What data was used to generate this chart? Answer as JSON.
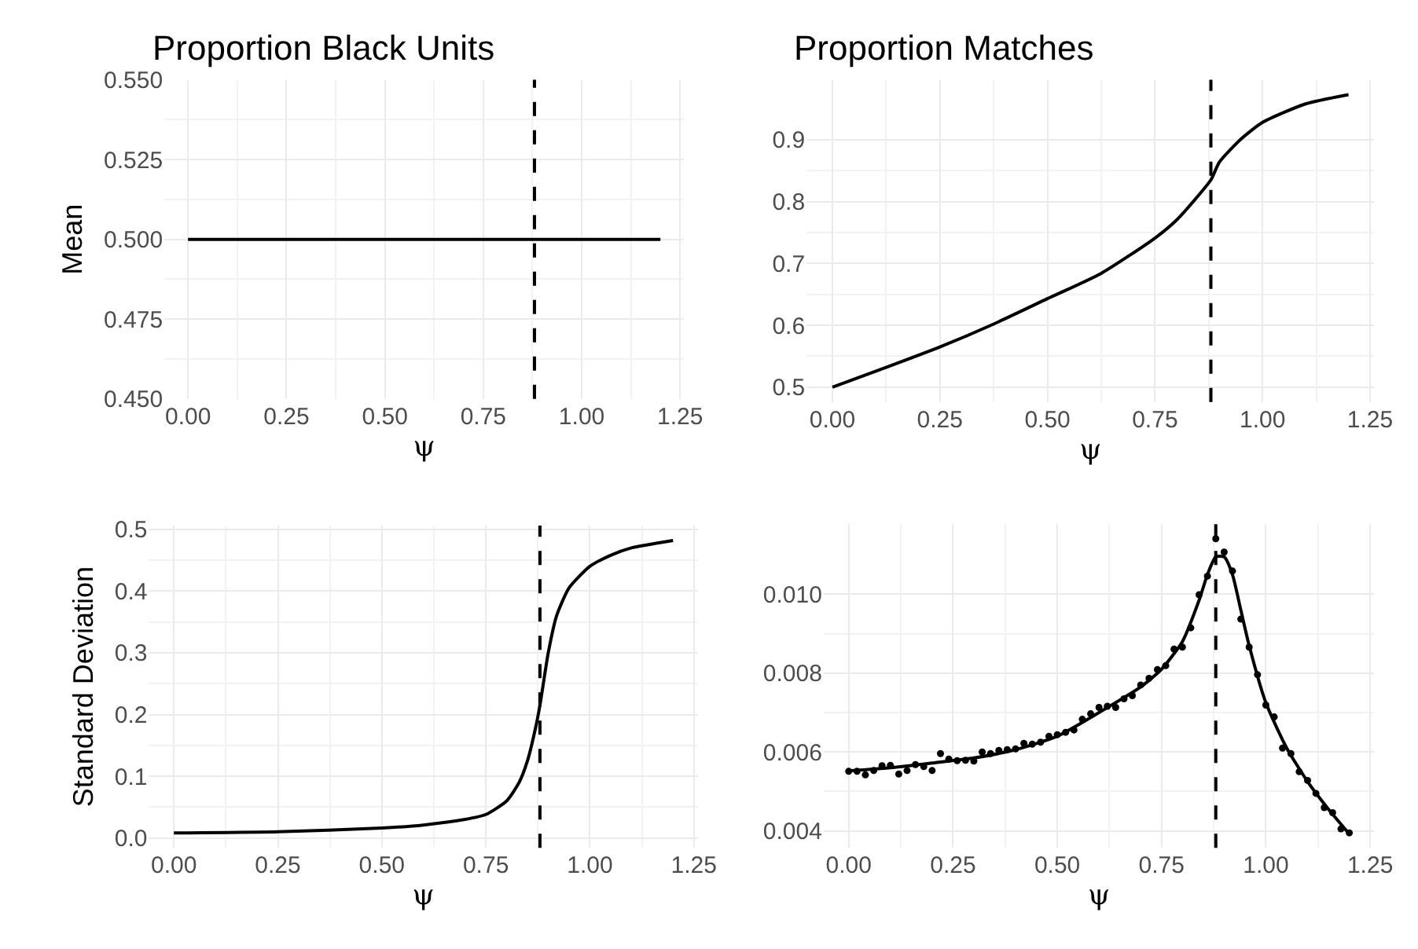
{
  "chart_data": [
    {
      "type": "line",
      "title": "Proportion Black Units",
      "xlabel": "ψ",
      "ylabel": "Mean",
      "xlim": [
        -0.06,
        1.26
      ],
      "ylim": [
        0.45,
        0.55
      ],
      "xticks": [
        {
          "value": 0,
          "label": "0.00"
        },
        {
          "value": 0.25,
          "label": "0.25"
        },
        {
          "value": 0.5,
          "label": "0.50"
        },
        {
          "value": 0.75,
          "label": "0.75"
        },
        {
          "value": 1,
          "label": "1.00"
        },
        {
          "value": 1.25,
          "label": "1.25"
        }
      ],
      "yticks": [
        {
          "value": 0.45,
          "label": "0.450"
        },
        {
          "value": 0.475,
          "label": "0.475"
        },
        {
          "value": 0.5,
          "label": "0.500"
        },
        {
          "value": 0.525,
          "label": "0.525"
        },
        {
          "value": 0.55,
          "label": "0.550"
        }
      ],
      "grid": true,
      "marker": "none",
      "line_style": "solid",
      "series": [
        {
          "color": "#000000",
          "x": [
            0,
            1.2
          ],
          "values": [
            0.5,
            0.5
          ]
        }
      ],
      "ref_lines": [
        {
          "axis": "x",
          "value": 0.88,
          "line_style": "dashed",
          "color": "#000000"
        }
      ]
    },
    {
      "type": "line",
      "title": "Proportion Matches",
      "xlabel": "ψ",
      "xlim": [
        -0.06,
        1.26
      ],
      "ylim": [
        0.476,
        0.997
      ],
      "xticks": [
        {
          "value": 0,
          "label": "0.00"
        },
        {
          "value": 0.25,
          "label": "0.25"
        },
        {
          "value": 0.5,
          "label": "0.50"
        },
        {
          "value": 0.75,
          "label": "0.75"
        },
        {
          "value": 1,
          "label": "1.00"
        },
        {
          "value": 1.25,
          "label": "1.25"
        }
      ],
      "yticks": [
        0.5,
        0.6,
        0.7,
        0.8,
        0.9
      ],
      "grid": true,
      "marker": "none",
      "line_style": "solid",
      "series": [
        {
          "color": "#000000",
          "x": [
            0,
            0.125,
            0.25,
            0.375,
            0.5,
            0.625,
            0.75,
            0.8,
            0.85,
            0.88,
            0.9,
            0.95,
            1.0,
            1.1,
            1.2
          ],
          "values": [
            0.5,
            0.532,
            0.565,
            0.602,
            0.643,
            0.684,
            0.741,
            0.77,
            0.809,
            0.835,
            0.864,
            0.901,
            0.928,
            0.958,
            0.973
          ]
        }
      ],
      "ref_lines": [
        {
          "axis": "x",
          "value": 0.88,
          "line_style": "dashed",
          "color": "#000000"
        }
      ]
    },
    {
      "type": "line",
      "xlabel": "ψ",
      "ylabel": "Standard Deviation",
      "xlim": [
        -0.06,
        1.26
      ],
      "ylim": [
        -0.016,
        0.506
      ],
      "xticks": [
        {
          "value": 0,
          "label": "0.00"
        },
        {
          "value": 0.25,
          "label": "0.25"
        },
        {
          "value": 0.5,
          "label": "0.50"
        },
        {
          "value": 0.75,
          "label": "0.75"
        },
        {
          "value": 1,
          "label": "1.00"
        },
        {
          "value": 1.25,
          "label": "1.25"
        }
      ],
      "yticks": [
        {
          "value": 0,
          "label": "0.0"
        },
        0.1,
        0.2,
        0.3,
        0.4,
        0.5
      ],
      "grid": true,
      "marker": "none",
      "line_style": "solid",
      "series": [
        {
          "color": "#000000",
          "x": [
            0,
            0.25,
            0.5,
            0.6,
            0.7,
            0.75,
            0.8,
            0.83,
            0.85,
            0.87,
            0.88,
            0.9,
            0.92,
            0.95,
            1.0,
            1.05,
            1.1,
            1.2
          ],
          "values": [
            0.008,
            0.01,
            0.016,
            0.021,
            0.03,
            0.038,
            0.06,
            0.09,
            0.125,
            0.18,
            0.215,
            0.3,
            0.36,
            0.405,
            0.44,
            0.458,
            0.47,
            0.482
          ]
        }
      ],
      "ref_lines": [
        {
          "axis": "x",
          "value": 0.88,
          "line_style": "dashed",
          "color": "#000000"
        }
      ]
    },
    {
      "type": "line",
      "xlabel": "ψ",
      "xlim": [
        -0.06,
        1.26
      ],
      "ylim": [
        0.00357,
        0.01178
      ],
      "xticks": [
        {
          "value": 0,
          "label": "0.00"
        },
        {
          "value": 0.25,
          "label": "0.25"
        },
        {
          "value": 0.5,
          "label": "0.50"
        },
        {
          "value": 0.75,
          "label": "0.75"
        },
        {
          "value": 1,
          "label": "1.00"
        },
        {
          "value": 1.25,
          "label": "1.25"
        }
      ],
      "yticks": [
        0.004,
        0.006,
        0.008,
        {
          "value": 0.01,
          "label": "0.010"
        }
      ],
      "grid": true,
      "line_style": "solid",
      "series": [
        {
          "type": "scatter",
          "marker": "circle",
          "color": "#000000",
          "x": [
            0,
            0.02,
            0.04,
            0.06,
            0.08,
            0.1,
            0.12,
            0.14,
            0.16,
            0.18,
            0.2,
            0.22,
            0.24,
            0.26,
            0.28,
            0.3,
            0.32,
            0.34,
            0.36,
            0.38,
            0.4,
            0.42,
            0.44,
            0.46,
            0.48,
            0.5,
            0.52,
            0.54,
            0.56,
            0.58,
            0.6,
            0.62,
            0.64,
            0.66,
            0.68,
            0.7,
            0.72,
            0.74,
            0.76,
            0.78,
            0.8,
            0.82,
            0.84,
            0.86,
            0.88,
            0.9,
            0.92,
            0.94,
            0.96,
            0.98,
            1.0,
            1.02,
            1.04,
            1.06,
            1.08,
            1.1,
            1.12,
            1.14,
            1.16,
            1.18,
            1.2
          ],
          "values": [
            0.00551,
            0.00551,
            0.00542,
            0.00553,
            0.00565,
            0.00566,
            0.00544,
            0.00553,
            0.00568,
            0.00563,
            0.00553,
            0.00596,
            0.00582,
            0.00578,
            0.00579,
            0.00577,
            0.006,
            0.00596,
            0.00604,
            0.00606,
            0.00608,
            0.00622,
            0.0062,
            0.00625,
            0.0064,
            0.00644,
            0.0065,
            0.00656,
            0.00683,
            0.00697,
            0.00713,
            0.00716,
            0.00713,
            0.00735,
            0.00743,
            0.0077,
            0.00787,
            0.00809,
            0.00819,
            0.00861,
            0.00866,
            0.00915,
            0.00999,
            0.01046,
            0.01141,
            0.01107,
            0.01059,
            0.00937,
            0.00866,
            0.00796,
            0.00719,
            0.00689,
            0.0061,
            0.00596,
            0.0055,
            0.00528,
            0.00495,
            0.00459,
            0.00446,
            0.00405,
            0.00395
          ]
        },
        {
          "type": "line",
          "marker": "none",
          "color": "#000000",
          "x": [
            0,
            0.1,
            0.2,
            0.3,
            0.4,
            0.5,
            0.6,
            0.7,
            0.75,
            0.8,
            0.84,
            0.86,
            0.88,
            0.9,
            0.92,
            0.94,
            0.96,
            1.0,
            1.05,
            1.1,
            1.15,
            1.2
          ],
          "values": [
            0.00552,
            0.0056,
            0.00572,
            0.00585,
            0.00606,
            0.0064,
            0.007,
            0.00765,
            0.0081,
            0.0088,
            0.00985,
            0.0105,
            0.01095,
            0.01095,
            0.0105,
            0.0096,
            0.0087,
            0.00725,
            0.0061,
            0.00525,
            0.00455,
            0.00392
          ]
        }
      ],
      "ref_lines": [
        {
          "axis": "x",
          "value": 0.88,
          "line_style": "dashed",
          "color": "#000000"
        }
      ]
    }
  ]
}
